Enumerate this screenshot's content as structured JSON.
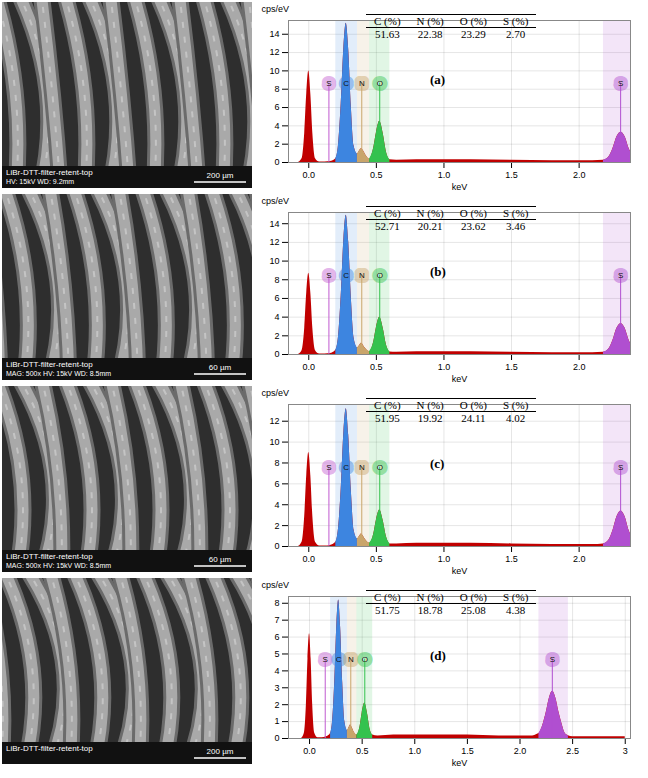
{
  "images": [
    {
      "caption": "LiBr-DTT-filter-retent-top",
      "info": "HV: 15kV  WD: 9.2mm",
      "scale_bar": "200 µm"
    },
    {
      "caption": "LiBr-DTT-filter-retent-top",
      "info": "MAG: 500x  HV: 15kV  WD: 8.5mm",
      "scale_bar": "60 µm"
    },
    {
      "caption": "LiBr-DTT-filter-retent-top",
      "info": "MAG: 500x  HV: 15kV  WD: 8.5mm",
      "scale_bar": "60 µm"
    },
    {
      "caption": "LiBr-DTT-filter-retent-top",
      "scale_bar": "200 µm"
    }
  ],
  "chart_data": [
    {
      "type": "area",
      "label": "(a)",
      "x_label": "keV",
      "y_label": "cps/eV",
      "color": "#c00000",
      "grid": true,
      "x": [
        -0.15,
        -0.08,
        -0.05,
        -0.03,
        -0.015,
        0,
        0.015,
        0.03,
        0.05,
        0.08,
        0.12,
        0.16,
        0.2,
        0.22,
        0.24,
        0.26,
        0.277,
        0.295,
        0.315,
        0.335,
        0.36,
        0.375,
        0.39,
        0.405,
        0.42,
        0.45,
        0.48,
        0.5,
        0.525,
        0.55,
        0.575,
        0.6,
        0.65,
        0.8,
        1.0,
        1.2,
        1.5,
        1.8,
        2.0,
        2.1,
        2.18,
        2.22,
        2.25,
        2.28,
        2.31,
        2.34,
        2.37,
        2.38
      ],
      "values": [
        0,
        0,
        0.4,
        3.2,
        7.5,
        10,
        7.5,
        3.2,
        0.4,
        0.05,
        0.05,
        0.1,
        0.4,
        1.9,
        6.4,
        12.6,
        15.2,
        12.4,
        6.0,
        1.8,
        0.9,
        1.25,
        1.5,
        1.25,
        0.85,
        0.35,
        1.55,
        3.2,
        4.5,
        3.2,
        1.1,
        0.3,
        0.25,
        0.3,
        0.3,
        0.3,
        0.25,
        0.2,
        0.2,
        0.2,
        0.25,
        0.6,
        1.5,
        2.8,
        3.3,
        2.8,
        1.5,
        1.2
      ],
      "xlim": [
        -0.15,
        2.38
      ],
      "ylim": [
        0,
        15.5
      ],
      "xticks": [
        {
          "value": 0,
          "label": "0.0"
        },
        0.5,
        {
          "value": 1,
          "label": "1.0"
        },
        1.5,
        {
          "value": 2,
          "label": "2.0"
        }
      ],
      "yticks": [
        0,
        2,
        4,
        6,
        8,
        10,
        12,
        14
      ],
      "elements": [
        {
          "name": "S",
          "energy": 0.149,
          "color": "#c05ad0"
        },
        {
          "name": "C",
          "energy": 0.277,
          "color": "#3d85e0",
          "window": [
            0.2,
            0.36
          ]
        },
        {
          "name": "N",
          "energy": 0.392,
          "color": "#c9a56b",
          "window": [
            0.36,
            0.45
          ]
        },
        {
          "name": "O",
          "energy": 0.525,
          "color": "#34c24e",
          "window": [
            0.45,
            0.6
          ]
        },
        {
          "name": "S",
          "energy": 2.307,
          "color": "#b04fd0",
          "window": [
            2.18,
            2.46
          ]
        }
      ],
      "table": {
        "columns": [
          "C (%)",
          "N (%)",
          "O (%)",
          "S (%)"
        ],
        "values": [
          "51.63",
          "22.38",
          "23.29",
          "2.70"
        ]
      }
    },
    {
      "type": "area",
      "label": "(b)",
      "x_label": "keV",
      "y_label": "cps/eV",
      "color": "#c00000",
      "grid": true,
      "x": [
        -0.15,
        -0.08,
        -0.05,
        -0.03,
        -0.015,
        0,
        0.015,
        0.03,
        0.05,
        0.08,
        0.12,
        0.16,
        0.2,
        0.22,
        0.24,
        0.26,
        0.277,
        0.295,
        0.315,
        0.335,
        0.36,
        0.375,
        0.39,
        0.405,
        0.42,
        0.45,
        0.48,
        0.5,
        0.525,
        0.55,
        0.575,
        0.6,
        0.65,
        0.8,
        1.0,
        1.2,
        1.5,
        1.8,
        2.0,
        2.1,
        2.18,
        2.22,
        2.25,
        2.28,
        2.31,
        2.34,
        2.37,
        2.38
      ],
      "values": [
        0,
        0,
        0.4,
        2.8,
        6.6,
        8.7,
        6.6,
        2.8,
        0.4,
        0.05,
        0.05,
        0.1,
        0.45,
        1.9,
        6.3,
        12.4,
        14.9,
        12.1,
        6.0,
        1.75,
        0.7,
        0.95,
        1.2,
        0.95,
        0.64,
        0.3,
        1.3,
        2.85,
        4.0,
        2.85,
        1.0,
        0.28,
        0.25,
        0.3,
        0.3,
        0.3,
        0.25,
        0.2,
        0.2,
        0.2,
        0.25,
        0.6,
        1.5,
        2.8,
        3.3,
        2.8,
        1.5,
        1.2
      ],
      "xlim": [
        -0.15,
        2.38
      ],
      "ylim": [
        0,
        15.2
      ],
      "xticks": [
        {
          "value": 0,
          "label": "0.0"
        },
        0.5,
        {
          "value": 1,
          "label": "1.0"
        },
        1.5,
        {
          "value": 2,
          "label": "2.0"
        }
      ],
      "yticks": [
        0,
        2,
        4,
        6,
        8,
        10,
        12,
        14
      ],
      "elements": [
        {
          "name": "S",
          "energy": 0.149,
          "color": "#c05ad0"
        },
        {
          "name": "C",
          "energy": 0.277,
          "color": "#3d85e0",
          "window": [
            0.2,
            0.36
          ]
        },
        {
          "name": "N",
          "energy": 0.392,
          "color": "#c9a56b",
          "window": [
            0.36,
            0.45
          ]
        },
        {
          "name": "O",
          "energy": 0.525,
          "color": "#34c24e",
          "window": [
            0.45,
            0.6
          ]
        },
        {
          "name": "S",
          "energy": 2.307,
          "color": "#b04fd0",
          "window": [
            2.18,
            2.46
          ]
        }
      ],
      "table": {
        "columns": [
          "C (%)",
          "N (%)",
          "O (%)",
          "S (%)"
        ],
        "values": [
          "52.71",
          "20.21",
          "23.62",
          "3.46"
        ]
      }
    },
    {
      "type": "area",
      "label": "(c)",
      "x_label": "keV",
      "y_label": "cps/eV",
      "color": "#c00000",
      "grid": true,
      "x": [
        -0.15,
        -0.08,
        -0.05,
        -0.03,
        -0.015,
        0,
        0.015,
        0.03,
        0.05,
        0.08,
        0.12,
        0.16,
        0.2,
        0.22,
        0.24,
        0.26,
        0.277,
        0.295,
        0.315,
        0.335,
        0.36,
        0.375,
        0.39,
        0.405,
        0.42,
        0.45,
        0.48,
        0.5,
        0.525,
        0.55,
        0.575,
        0.6,
        0.65,
        0.8,
        1.0,
        1.2,
        1.5,
        1.8,
        2.0,
        2.1,
        2.18,
        2.22,
        2.25,
        2.28,
        2.31,
        2.34,
        2.37,
        2.38
      ],
      "values": [
        0,
        0,
        0.4,
        2.9,
        6.8,
        9.0,
        6.8,
        2.9,
        0.4,
        0.05,
        0.05,
        0.1,
        0.4,
        1.7,
        5.5,
        11.0,
        13.2,
        10.7,
        5.3,
        1.55,
        0.7,
        0.95,
        1.2,
        0.95,
        0.64,
        0.3,
        1.15,
        2.5,
        3.5,
        2.5,
        0.9,
        0.25,
        0.25,
        0.3,
        0.3,
        0.3,
        0.25,
        0.2,
        0.2,
        0.2,
        0.25,
        0.6,
        1.5,
        2.85,
        3.4,
        2.85,
        1.5,
        1.2
      ],
      "xlim": [
        -0.15,
        2.38
      ],
      "ylim": [
        0,
        13.6
      ],
      "xticks": [
        {
          "value": 0,
          "label": "0.0"
        },
        0.5,
        {
          "value": 1,
          "label": "1.0"
        },
        1.5,
        {
          "value": 2,
          "label": "2.0"
        }
      ],
      "yticks": [
        0,
        2,
        4,
        6,
        8,
        10,
        12
      ],
      "elements": [
        {
          "name": "S",
          "energy": 0.149,
          "color": "#c05ad0"
        },
        {
          "name": "C",
          "energy": 0.277,
          "color": "#3d85e0",
          "window": [
            0.2,
            0.36
          ]
        },
        {
          "name": "N",
          "energy": 0.392,
          "color": "#c9a56b",
          "window": [
            0.36,
            0.45
          ]
        },
        {
          "name": "O",
          "energy": 0.525,
          "color": "#34c24e",
          "window": [
            0.45,
            0.6
          ]
        },
        {
          "name": "S",
          "energy": 2.307,
          "color": "#b04fd0",
          "window": [
            2.18,
            2.46
          ]
        }
      ],
      "table": {
        "columns": [
          "C (%)",
          "N (%)",
          "O (%)",
          "S (%)"
        ],
        "values": [
          "51.95",
          "19.92",
          "24.11",
          "4.02"
        ]
      }
    },
    {
      "type": "area",
      "label": "(d)",
      "x_label": "keV",
      "y_label": "cps/eV",
      "color": "#c00000",
      "grid": true,
      "x": [
        -0.15,
        -0.08,
        -0.05,
        -0.03,
        -0.015,
        0,
        0.015,
        0.03,
        0.05,
        0.08,
        0.12,
        0.16,
        0.2,
        0.22,
        0.24,
        0.26,
        0.277,
        0.295,
        0.315,
        0.335,
        0.36,
        0.375,
        0.39,
        0.405,
        0.42,
        0.45,
        0.48,
        0.5,
        0.525,
        0.55,
        0.575,
        0.6,
        0.65,
        0.8,
        1.0,
        1.2,
        1.5,
        1.8,
        2.0,
        2.1,
        2.18,
        2.22,
        2.25,
        2.28,
        2.31,
        2.34,
        2.37,
        2.4,
        2.43,
        2.46,
        2.5,
        2.6,
        2.8,
        3.0
      ],
      "values": [
        0,
        0,
        0.3,
        2.0,
        4.7,
        6.2,
        4.7,
        2.0,
        0.3,
        0.05,
        0.05,
        0.1,
        0.3,
        1.1,
        3.4,
        6.8,
        8.2,
        6.6,
        3.3,
        1.0,
        0.45,
        0.63,
        0.8,
        0.63,
        0.42,
        0.2,
        0.7,
        1.5,
        2.1,
        1.5,
        0.55,
        0.2,
        0.15,
        0.2,
        0.2,
        0.2,
        0.2,
        0.15,
        0.15,
        0.15,
        0.3,
        0.85,
        1.55,
        2.4,
        2.8,
        2.4,
        1.55,
        0.85,
        0.3,
        0.17,
        0.1,
        0.1,
        0.1,
        0.1
      ],
      "xlim": [
        -0.2,
        3.05
      ],
      "ylim": [
        0,
        8.4
      ],
      "xticks": [
        {
          "value": 0,
          "label": "0.0"
        },
        0.5,
        {
          "value": 1,
          "label": "1.0"
        },
        1.5,
        {
          "value": 2,
          "label": "2.0"
        },
        2.5,
        3
      ],
      "yticks": [
        0,
        1,
        2,
        3,
        4,
        5,
        6,
        7,
        8
      ],
      "elements": [
        {
          "name": "S",
          "energy": 0.149,
          "color": "#c05ad0"
        },
        {
          "name": "C",
          "energy": 0.277,
          "color": "#3d85e0",
          "window": [
            0.2,
            0.36
          ]
        },
        {
          "name": "N",
          "energy": 0.392,
          "color": "#c9a56b",
          "window": [
            0.36,
            0.45
          ]
        },
        {
          "name": "O",
          "energy": 0.525,
          "color": "#34c24e",
          "window": [
            0.45,
            0.6
          ]
        },
        {
          "name": "S",
          "energy": 2.307,
          "color": "#b04fd0",
          "window": [
            2.18,
            2.46
          ]
        }
      ],
      "table": {
        "columns": [
          "C (%)",
          "N (%)",
          "O (%)",
          "S (%)"
        ],
        "values": [
          "51.75",
          "18.78",
          "25.08",
          "4.38"
        ]
      }
    }
  ]
}
